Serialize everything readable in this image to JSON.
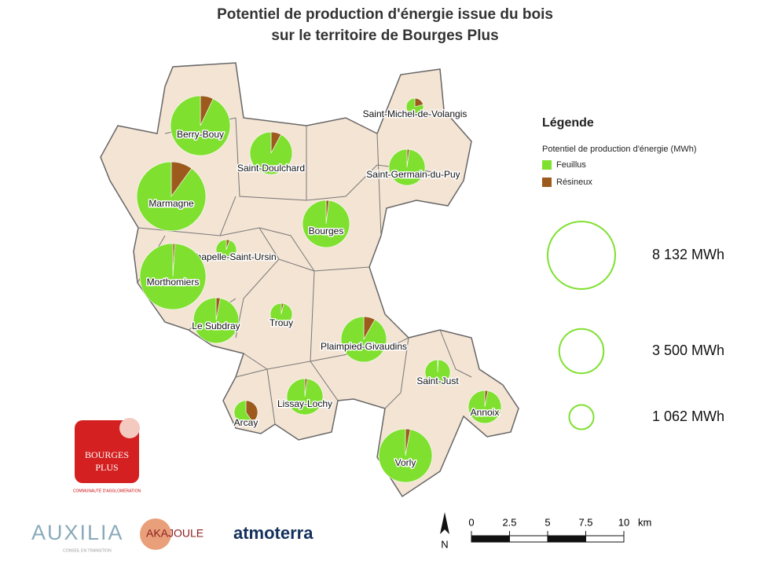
{
  "title_lines": [
    "Potentiel de production d'énergie issue du bois",
    "sur le territoire de Bourges Plus"
  ],
  "legend": {
    "title": "Légende",
    "subtitle": "Potentiel de production d'énergie (MWh)",
    "series": [
      {
        "name": "Feuillus",
        "color": "#7fe030"
      },
      {
        "name": "Résineux",
        "color": "#9c5a1c"
      }
    ],
    "sizes": [
      {
        "value": 8132,
        "label": "8 132 MWh"
      },
      {
        "value": 3500,
        "label": "3 500 MWh"
      },
      {
        "value": 1062,
        "label": "1 062 MWh"
      }
    ]
  },
  "communes": [
    {
      "name": "Berry-Bouy",
      "values": [
        5900,
        450
      ]
    },
    {
      "name": "Saint-Doulchard",
      "values": [
        2950,
        250
      ]
    },
    {
      "name": "Marmagne",
      "values": [
        7650,
        850
      ]
    },
    {
      "name": "Bourges",
      "values": [
        3880,
        80
      ]
    },
    {
      "name": "Saint-Michel-de-Volangis",
      "values": [
        420,
        110
      ]
    },
    {
      "name": "Saint-Germain-du-Puy",
      "values": [
        2280,
        50
      ]
    },
    {
      "name": "La Chapelle-Saint-Ursin",
      "values": [
        700,
        40
      ]
    },
    {
      "name": "Morthomiers",
      "values": [
        7680,
        80
      ]
    },
    {
      "name": "Le Subdray",
      "values": [
        3570,
        110
      ]
    },
    {
      "name": "Trouy",
      "values": [
        830,
        30
      ]
    },
    {
      "name": "Plaimpied-Givaudins",
      "values": [
        3380,
        300
      ]
    },
    {
      "name": "Saint-Just",
      "values": [
        1120,
        10
      ]
    },
    {
      "name": "Annoix",
      "values": [
        1870,
        60
      ]
    },
    {
      "name": "Lissay-Lochy",
      "values": [
        2280,
        50
      ]
    },
    {
      "name": "Arcay",
      "values": [
        590,
        400
      ]
    },
    {
      "name": "Vorly",
      "values": [
        4930,
        150
      ]
    }
  ],
  "scale": {
    "ticks": [
      0,
      2.5,
      5,
      7.5,
      10
    ],
    "unit": "km",
    "north": "N"
  },
  "logos": {
    "bourges": [
      "BOURGES",
      "PLUS"
    ],
    "bourges_sub": "COMMUNAUTÉ D'AGGLOMÉRATION",
    "auxilia": "AUXILIA",
    "auxilia_sub": "CONSEIL EN TRANSITION",
    "akajoule": "AKAJOULE",
    "atmoterra": "atmoterra"
  }
}
